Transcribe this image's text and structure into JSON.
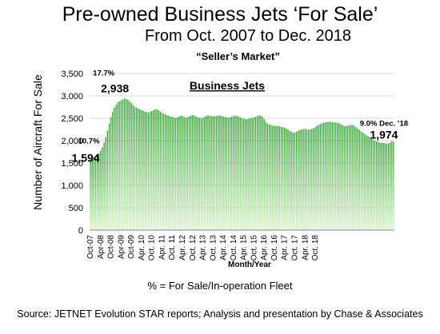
{
  "title": "Pre-owned Business Jets ‘For Sale’",
  "subtitle": "From Oct. 2007 to Dec. 2018",
  "tagline": "“Seller’s Market”",
  "footnote": "% = For Sale/In-operation Fleet",
  "source": "Source: JETNET Evolution STAR reports; Analysis and presentation by Chase & Associates",
  "colors": {
    "bar_top": "#2e9e2e",
    "bar_bottom": "#d9f0c8",
    "grid": "#d9d9d9"
  },
  "chart_data": {
    "type": "bar",
    "series_label": "Business Jets",
    "xlabel": "Month/Year",
    "ylabel": "Number  of Aircraft For Sale",
    "ylim": [
      0,
      3500
    ],
    "yticks": [
      0,
      500,
      1000,
      1500,
      2000,
      2500,
      3000,
      3500
    ],
    "ytick_labels": [
      "0",
      "500",
      "1,000",
      "1,500",
      "2,000",
      "2,500",
      "3,000",
      "3,500"
    ],
    "x_start": "2007-10",
    "x_end": "2018-12",
    "xtick_labels": [
      "Oct-07",
      "Apr-08",
      "Oct-08",
      "Apr-09",
      "Oct-09",
      "Apr. 10",
      "Oct. 10",
      "Apr. 11",
      "Oct. 11",
      "Apr. 12",
      "Oct. 12",
      "Apr. 13",
      "Oct. 13",
      "Apr. 14",
      "Oct. 14",
      "Apr. 15",
      "Oct. 15",
      "Apr. 16",
      "Oct. 16",
      "Apr. 17",
      "Oct. 17",
      "Apr. 18",
      "Oct. 18"
    ],
    "values": [
      1594,
      1610,
      1640,
      1660,
      1680,
      1720,
      1780,
      1850,
      1960,
      2080,
      2220,
      2380,
      2530,
      2640,
      2740,
      2800,
      2850,
      2880,
      2900,
      2920,
      2938,
      2930,
      2910,
      2880,
      2840,
      2800,
      2760,
      2740,
      2720,
      2700,
      2680,
      2670,
      2650,
      2640,
      2630,
      2640,
      2660,
      2680,
      2700,
      2700,
      2680,
      2650,
      2620,
      2600,
      2590,
      2570,
      2560,
      2540,
      2530,
      2520,
      2510,
      2520,
      2540,
      2560,
      2550,
      2530,
      2510,
      2520,
      2540,
      2560,
      2570,
      2560,
      2540,
      2520,
      2510,
      2500,
      2510,
      2530,
      2550,
      2560,
      2560,
      2550,
      2540,
      2540,
      2550,
      2560,
      2560,
      2550,
      2540,
      2530,
      2520,
      2510,
      2520,
      2530,
      2550,
      2560,
      2550,
      2540,
      2520,
      2500,
      2490,
      2480,
      2480,
      2490,
      2500,
      2510,
      2520,
      2530,
      2550,
      2560,
      2560,
      2530,
      2480,
      2420,
      2380,
      2360,
      2350,
      2340,
      2330,
      2330,
      2330,
      2320,
      2310,
      2300,
      2290,
      2270,
      2250,
      2220,
      2200,
      2180,
      2180,
      2200,
      2220,
      2240,
      2250,
      2260,
      2260,
      2250,
      2240,
      2250,
      2260,
      2280,
      2300,
      2330,
      2350,
      2370,
      2390,
      2400,
      2410,
      2420,
      2420,
      2420,
      2410,
      2410,
      2400,
      2400,
      2390,
      2370,
      2350,
      2330,
      2320,
      2330,
      2340,
      2350,
      2350,
      2330,
      2300,
      2270,
      2240,
      2210,
      2180,
      2150,
      2120,
      2100,
      2080,
      2050,
      2020,
      2000,
      1980,
      1970,
      1960,
      1950,
      1945,
      1940,
      1935,
      1940,
      1960,
      1990,
      1974
    ],
    "annotations": [
      {
        "text": "10.7%",
        "style": "pct"
      },
      {
        "text": "1,594",
        "style": "value"
      },
      {
        "text": "17.7%",
        "style": "pct"
      },
      {
        "text": "2,938",
        "style": "value"
      },
      {
        "text": "9.0% Dec. ’18",
        "style": "pct"
      },
      {
        "text": "1,974",
        "style": "value"
      }
    ]
  }
}
